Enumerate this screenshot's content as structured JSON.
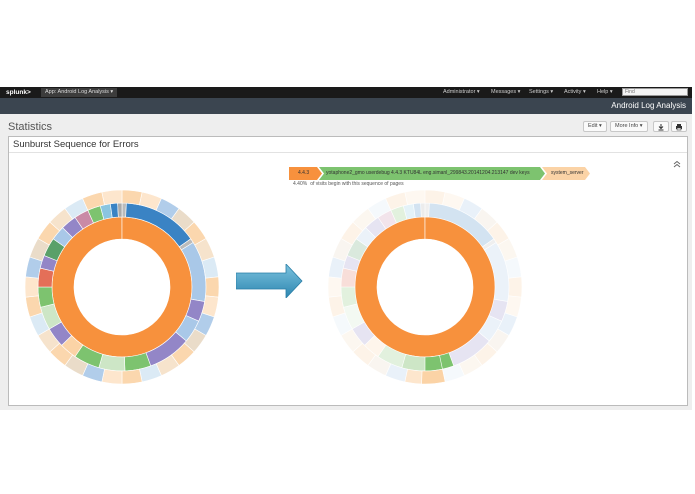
{
  "topbar": {
    "logo": "splunk>",
    "app_label": "App: Android Log Analysis ▾",
    "menus": [
      "Administrator ▾",
      "Messages ▾",
      "Settings ▾",
      "Activity ▾",
      "Help ▾"
    ],
    "find_placeholder": "Find"
  },
  "appbar": {
    "title": "Android Log Analysis"
  },
  "page": {
    "title": "Statistics",
    "edit_label": "Edit ▾",
    "more_info_label": "More Info ▾",
    "download_icon": "download-icon",
    "print_icon": "print-icon"
  },
  "panel": {
    "title": "Sunburst Sequence for Errors",
    "collapse_icon": "collapse-icon"
  },
  "sequence": {
    "items": [
      {
        "label": "4.4.3",
        "color": "#f7913d"
      },
      {
        "label": "yotaphone2_gmo userdebug 4.4.3 KTU84L eng.simanl_299843.20141204.213147 dev keys",
        "color": "#7dc36f"
      },
      {
        "label": "system_server",
        "color": "#fbd3a6"
      }
    ],
    "percent": "4.40%",
    "caption": "of visits begin with this sequence of pages"
  },
  "colors": {
    "orange": "#f7913d",
    "blue": "#3a83c4",
    "lightblue": "#a9c8e8",
    "peach": "#fbd3a6",
    "green": "#7dc36f",
    "purple": "#9386c7",
    "arrow": "#4aa3c8"
  }
}
